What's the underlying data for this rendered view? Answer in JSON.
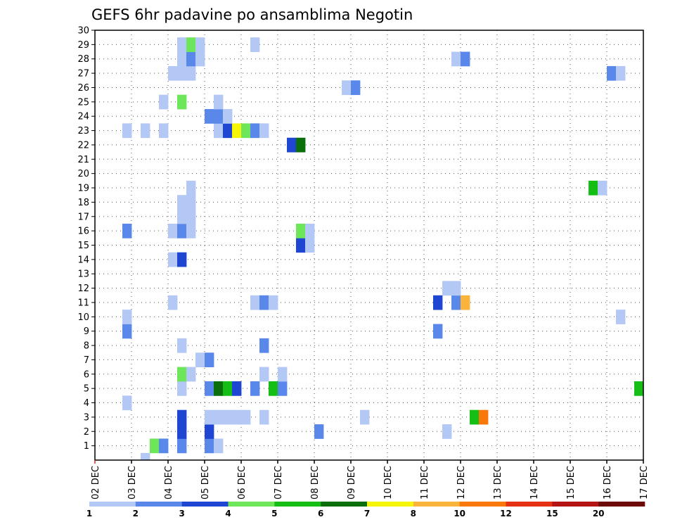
{
  "chart_data": {
    "type": "heatmap",
    "title": "GEFS 6hr padavine po ansamblima Negotin",
    "xlabel": "",
    "ylabel": "",
    "x_tick_labels": [
      "02 DEC",
      "03 DEC",
      "04 DEC",
      "05 DEC",
      "06 DEC",
      "07 DEC",
      "08 DEC",
      "09 DEC",
      "10 DEC",
      "11 DEC",
      "12 DEC",
      "13 DEC",
      "14 DEC",
      "15 DEC",
      "16 DEC",
      "17 DEC"
    ],
    "x_range_days": [
      0,
      15
    ],
    "y_tick_labels": [
      "1",
      "2",
      "3",
      "4",
      "5",
      "6",
      "7",
      "8",
      "9",
      "10",
      "11",
      "12",
      "13",
      "14",
      "15",
      "16",
      "17",
      "18",
      "19",
      "20",
      "21",
      "22",
      "23",
      "24",
      "25",
      "26",
      "27",
      "28",
      "29",
      "30"
    ],
    "y_range": [
      0,
      30
    ],
    "grid": true,
    "legend": {
      "position": "bottom",
      "labels": [
        "1",
        "2",
        "3",
        "4",
        "5",
        "6",
        "7",
        "8",
        "10",
        "12",
        "15",
        "20"
      ],
      "colors": [
        "#b4c8f5",
        "#5a88ea",
        "#1e46d2",
        "#6ee65a",
        "#14be14",
        "#0a6e0a",
        "#f5f50a",
        "#fab43c",
        "#fa780a",
        "#e63214",
        "#b41414",
        "#6e0a0a"
      ]
    },
    "cells": [
      [
        5,
        0,
        1
      ],
      [
        6,
        1,
        4
      ],
      [
        7,
        1,
        2
      ],
      [
        9,
        1,
        2
      ],
      [
        12,
        1,
        2
      ],
      [
        13,
        1,
        1
      ],
      [
        9,
        2,
        3
      ],
      [
        12,
        2,
        3
      ],
      [
        24,
        2,
        2
      ],
      [
        38,
        2,
        1
      ],
      [
        9,
        3,
        3
      ],
      [
        12,
        3,
        1
      ],
      [
        13,
        3,
        1
      ],
      [
        14,
        3,
        1
      ],
      [
        15,
        3,
        1
      ],
      [
        16,
        3,
        1
      ],
      [
        18,
        3,
        1
      ],
      [
        29,
        3,
        1
      ],
      [
        41,
        3,
        5
      ],
      [
        42,
        3,
        9
      ],
      [
        3,
        4,
        1
      ],
      [
        9,
        5,
        1
      ],
      [
        12,
        5,
        2
      ],
      [
        13,
        5,
        6
      ],
      [
        14,
        5,
        5
      ],
      [
        15,
        5,
        3
      ],
      [
        17,
        5,
        2
      ],
      [
        19,
        5,
        5
      ],
      [
        20,
        5,
        2
      ],
      [
        59,
        5,
        5
      ],
      [
        9,
        6,
        4
      ],
      [
        10,
        6,
        1
      ],
      [
        18,
        6,
        1
      ],
      [
        20,
        6,
        1
      ],
      [
        11,
        7,
        1
      ],
      [
        12,
        7,
        2
      ],
      [
        9,
        8,
        1
      ],
      [
        18,
        8,
        2
      ],
      [
        3,
        9,
        2
      ],
      [
        37,
        9,
        2
      ],
      [
        3,
        10,
        1
      ],
      [
        57,
        10,
        1
      ],
      [
        8,
        11,
        1
      ],
      [
        17,
        11,
        1
      ],
      [
        18,
        11,
        2
      ],
      [
        19,
        11,
        1
      ],
      [
        37,
        11,
        3
      ],
      [
        39,
        11,
        2
      ],
      [
        40,
        11,
        8
      ],
      [
        38,
        12,
        1
      ],
      [
        39,
        12,
        1
      ],
      [
        8,
        14,
        1
      ],
      [
        9,
        14,
        3
      ],
      [
        22,
        15,
        3
      ],
      [
        23,
        15,
        1
      ],
      [
        3,
        16,
        2
      ],
      [
        8,
        16,
        1
      ],
      [
        9,
        16,
        2
      ],
      [
        10,
        16,
        1
      ],
      [
        22,
        16,
        4
      ],
      [
        23,
        16,
        1
      ],
      [
        9,
        17,
        1
      ],
      [
        10,
        17,
        1
      ],
      [
        9,
        18,
        1
      ],
      [
        10,
        18,
        1
      ],
      [
        10,
        19,
        1
      ],
      [
        54,
        19,
        5
      ],
      [
        55,
        19,
        1
      ],
      [
        21,
        22,
        3
      ],
      [
        22,
        22,
        6
      ],
      [
        3,
        23,
        1
      ],
      [
        5,
        23,
        1
      ],
      [
        7,
        23,
        1
      ],
      [
        13,
        23,
        1
      ],
      [
        14,
        23,
        3
      ],
      [
        15,
        23,
        7
      ],
      [
        16,
        23,
        4
      ],
      [
        17,
        23,
        2
      ],
      [
        18,
        23,
        1
      ],
      [
        12,
        24,
        2
      ],
      [
        13,
        24,
        2
      ],
      [
        14,
        24,
        1
      ],
      [
        7,
        25,
        1
      ],
      [
        9,
        25,
        4
      ],
      [
        13,
        25,
        1
      ],
      [
        27,
        26,
        1
      ],
      [
        28,
        26,
        2
      ],
      [
        8,
        27,
        1
      ],
      [
        9,
        27,
        1
      ],
      [
        10,
        27,
        1
      ],
      [
        56,
        27,
        2
      ],
      [
        57,
        27,
        1
      ],
      [
        9,
        28,
        1
      ],
      [
        10,
        28,
        2
      ],
      [
        11,
        28,
        1
      ],
      [
        39,
        28,
        1
      ],
      [
        40,
        28,
        2
      ],
      [
        9,
        29,
        1
      ],
      [
        10,
        29,
        4
      ],
      [
        11,
        29,
        1
      ],
      [
        17,
        29,
        1
      ]
    ]
  }
}
